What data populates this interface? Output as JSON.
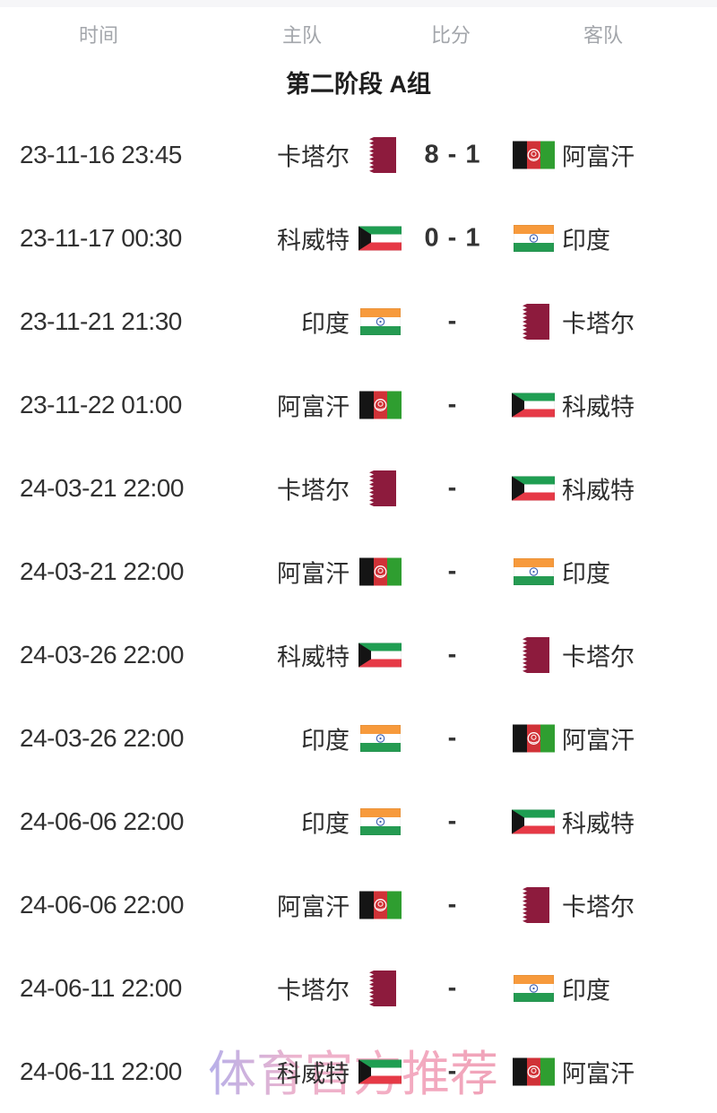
{
  "header": {
    "columns": [
      {
        "key": "time",
        "label": "时间"
      },
      {
        "key": "home",
        "label": "主队"
      },
      {
        "key": "score",
        "label": "比分"
      },
      {
        "key": "away",
        "label": "客队"
      }
    ]
  },
  "group_title": "第二阶段 A组",
  "watermark": "体育官方推荐",
  "colors": {
    "header_text": "#a3a6ab",
    "body_text": "#2e2e2e",
    "score_text": "#333333",
    "qatar_maroon": "#8d1b3d",
    "kuwait_green": "#1f9e52",
    "kuwait_red": "#e63946",
    "india_saffron": "#f79a3c",
    "india_green": "#259b52",
    "india_navy": "#3a5dae",
    "afghan_black": "#151515",
    "afghan_red": "#d03237",
    "afghan_green": "#2f9e30",
    "watermark_purple": "#aba3e6",
    "watermark_pink": "#ee93ac"
  },
  "flag_icon_names": {
    "qatar": "qatar-flag-icon",
    "kuwait": "kuwait-flag-icon",
    "india": "india-flag-icon",
    "afghanistan": "afghanistan-flag-icon"
  },
  "matches": [
    {
      "time": "23-11-16 23:45",
      "home": "卡塔尔",
      "home_flag": "qatar",
      "score": "8 - 1",
      "away": "阿富汗",
      "away_flag": "afghanistan"
    },
    {
      "time": "23-11-17 00:30",
      "home": "科威特",
      "home_flag": "kuwait",
      "score": "0 - 1",
      "away": "印度",
      "away_flag": "india"
    },
    {
      "time": "23-11-21 21:30",
      "home": "印度",
      "home_flag": "india",
      "score": "-",
      "away": "卡塔尔",
      "away_flag": "qatar"
    },
    {
      "time": "23-11-22 01:00",
      "home": "阿富汗",
      "home_flag": "afghanistan",
      "score": "-",
      "away": "科威特",
      "away_flag": "kuwait"
    },
    {
      "time": "24-03-21 22:00",
      "home": "卡塔尔",
      "home_flag": "qatar",
      "score": "-",
      "away": "科威特",
      "away_flag": "kuwait"
    },
    {
      "time": "24-03-21 22:00",
      "home": "阿富汗",
      "home_flag": "afghanistan",
      "score": "-",
      "away": "印度",
      "away_flag": "india"
    },
    {
      "time": "24-03-26 22:00",
      "home": "科威特",
      "home_flag": "kuwait",
      "score": "-",
      "away": "卡塔尔",
      "away_flag": "qatar"
    },
    {
      "time": "24-03-26 22:00",
      "home": "印度",
      "home_flag": "india",
      "score": "-",
      "away": "阿富汗",
      "away_flag": "afghanistan"
    },
    {
      "time": "24-06-06 22:00",
      "home": "印度",
      "home_flag": "india",
      "score": "-",
      "away": "科威特",
      "away_flag": "kuwait"
    },
    {
      "time": "24-06-06 22:00",
      "home": "阿富汗",
      "home_flag": "afghanistan",
      "score": "-",
      "away": "卡塔尔",
      "away_flag": "qatar"
    },
    {
      "time": "24-06-11 22:00",
      "home": "卡塔尔",
      "home_flag": "qatar",
      "score": "-",
      "away": "印度",
      "away_flag": "india"
    },
    {
      "time": "24-06-11 22:00",
      "home": "科威特",
      "home_flag": "kuwait",
      "score": "-",
      "away": "阿富汗",
      "away_flag": "afghanistan"
    }
  ]
}
